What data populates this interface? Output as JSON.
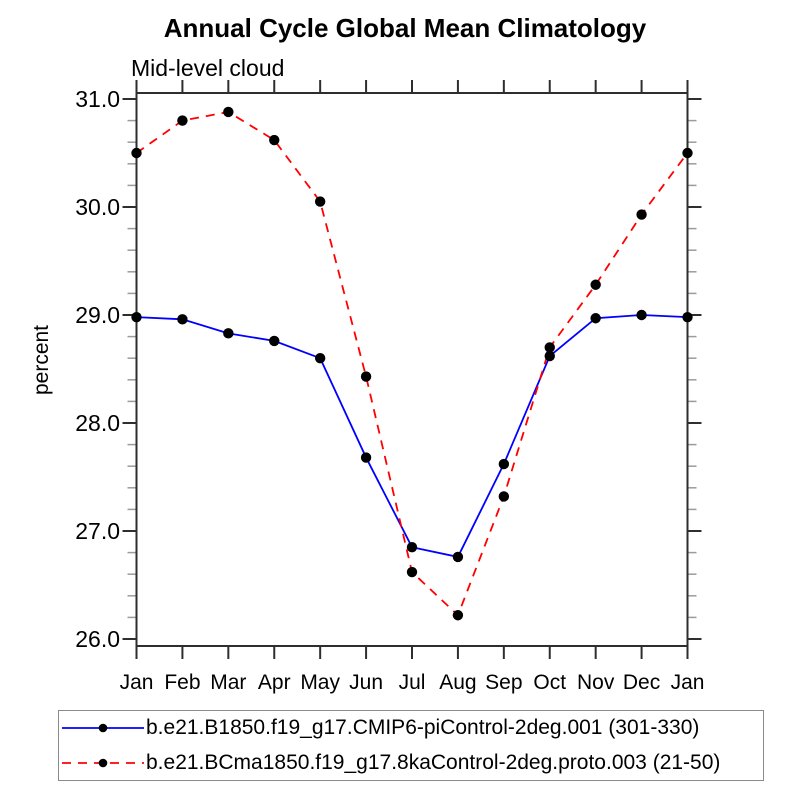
{
  "chart_data": {
    "type": "line",
    "title": "Annual Cycle Global Mean Climatology",
    "subtitle": "Mid-level cloud",
    "ylabel": "percent",
    "categories": [
      "Jan",
      "Feb",
      "Mar",
      "Apr",
      "May",
      "Jun",
      "Jul",
      "Aug",
      "Sep",
      "Oct",
      "Nov",
      "Dec",
      "Jan"
    ],
    "ylim": [
      25.94,
      31.06
    ],
    "yticks": [
      26.0,
      27.0,
      28.0,
      29.0,
      30.0,
      31.0
    ],
    "ytick_format_decimals": 1,
    "y_minor_step": 0.2,
    "grid": false,
    "legend_position": "bottom",
    "axis_color": "#2e2e2e",
    "minor_tick_color": "#9b9b9b",
    "marker_color": "#000000",
    "series": [
      {
        "name": "b.e21.B1850.f19_g17.CMIP6-piControl-2deg.001 (301-330)",
        "color": "#0000ff",
        "line_style": "solid",
        "dash": "none",
        "marker": "filled-circle",
        "values": [
          28.98,
          28.96,
          28.83,
          28.76,
          28.6,
          27.68,
          26.85,
          26.76,
          27.62,
          28.62,
          28.97,
          29.0,
          28.98
        ]
      },
      {
        "name": "b.e21.BCma1850.f19_g17.8kaControl-2deg.proto.003 (21-50)",
        "color": "#ff0000",
        "line_style": "dashed",
        "dash": "9,7",
        "marker": "filled-circle",
        "values": [
          30.5,
          30.8,
          30.88,
          30.62,
          30.05,
          28.43,
          26.62,
          26.22,
          27.32,
          28.7,
          29.28,
          29.93,
          30.5
        ]
      }
    ]
  }
}
